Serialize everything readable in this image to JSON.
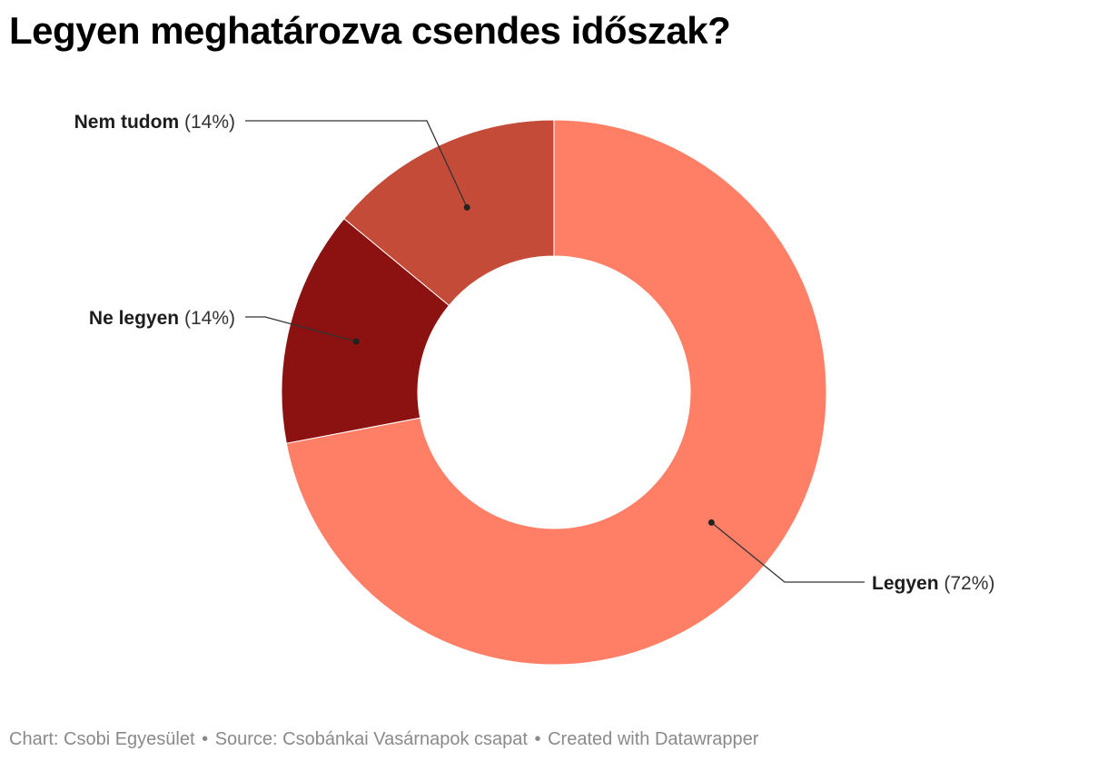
{
  "chart_data": {
    "type": "pie",
    "variant": "donut",
    "title": "Legyen meghatározva csendes időszak?",
    "slices": [
      {
        "label": "Legyen",
        "value": 72,
        "value_label": "(72%)",
        "color": "#ff7f66"
      },
      {
        "label": "Ne legyen",
        "value": 14,
        "value_label": "(14%)",
        "color": "#8b1210"
      },
      {
        "label": "Nem tudom",
        "value": 14,
        "value_label": "(14%)",
        "color": "#c44b38"
      }
    ],
    "start_angle_deg": 0,
    "direction": "clockwise"
  },
  "footer": {
    "chart_credit": "Chart: Csobi Egyesület",
    "source": "Source: Csobánkai Vasárnapok csapat",
    "created_with": "Created with Datawrapper",
    "separator": "•"
  }
}
